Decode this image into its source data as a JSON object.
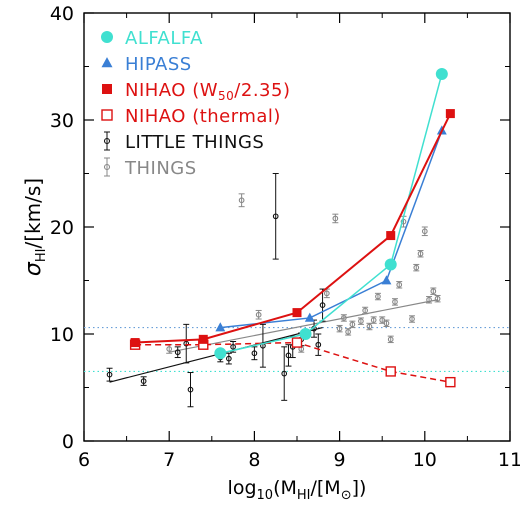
{
  "chart_data": {
    "type": "scatter",
    "xlabel": "log10(MHI/[M⊙])",
    "xlabel_parts": {
      "prefix": "log",
      "base": "10",
      "open": "(M",
      "sub": "HI",
      "mid": "/[M",
      "sun": "⊙",
      "close": "])"
    },
    "ylabel": "σHI/[km/s]",
    "ylabel_parts": {
      "sigma": "σ",
      "sub": "HI",
      "rest": "/[km/s]"
    },
    "xlim": [
      6,
      11
    ],
    "ylim": [
      0,
      40
    ],
    "x_ticks": [
      6,
      7,
      8,
      9,
      10,
      11
    ],
    "y_ticks": [
      0,
      10,
      20,
      30,
      40
    ],
    "grid": false,
    "legend_position": "top-left",
    "legend": [
      {
        "key": "alfalfa",
        "label": "ALFALFA",
        "color": "#40e0d0",
        "marker": "filled-circle"
      },
      {
        "key": "hipass",
        "label": "HIPASS",
        "color": "#3a7fd5",
        "marker": "filled-triangle"
      },
      {
        "key": "nihao_w50",
        "label": "NIHAO (W50/2.35)",
        "color": "#dd1111",
        "marker": "filled-square"
      },
      {
        "key": "nihao_thermal",
        "label": "NIHAO (thermal)",
        "color": "#dd1111",
        "marker": "open-square"
      },
      {
        "key": "little_things",
        "label": "LITTLE THINGS",
        "color": "#111111",
        "marker": "open-circle-errorbar"
      },
      {
        "key": "things",
        "label": "THINGS",
        "color": "#888888",
        "marker": "open-circle-errorbar"
      }
    ],
    "reference_lines": [
      {
        "y": 10.6,
        "color": "#6a9fd8",
        "style": "dotted"
      },
      {
        "y": 6.5,
        "color": "#40e0d0",
        "style": "dotted"
      }
    ],
    "series": [
      {
        "key": "alfalfa",
        "color": "#40e0d0",
        "marker": "circle",
        "filled": true,
        "connected": true,
        "points": [
          {
            "x": 7.6,
            "y": 8.2
          },
          {
            "x": 8.6,
            "y": 10.0
          },
          {
            "x": 9.6,
            "y": 16.5
          },
          {
            "x": 10.2,
            "y": 34.3
          }
        ]
      },
      {
        "key": "hipass",
        "color": "#3a7fd5",
        "marker": "triangle",
        "filled": true,
        "connected": true,
        "points": [
          {
            "x": 7.6,
            "y": 10.6
          },
          {
            "x": 8.65,
            "y": 11.5
          },
          {
            "x": 9.55,
            "y": 15.0
          },
          {
            "x": 10.2,
            "y": 29.0
          }
        ]
      },
      {
        "key": "nihao_w50",
        "color": "#dd1111",
        "marker": "square",
        "filled": true,
        "connected": true,
        "line_style": "solid",
        "points": [
          {
            "x": 6.6,
            "y": 9.2
          },
          {
            "x": 7.4,
            "y": 9.5
          },
          {
            "x": 8.5,
            "y": 12.0
          },
          {
            "x": 9.6,
            "y": 19.2
          },
          {
            "x": 10.3,
            "y": 30.6
          }
        ]
      },
      {
        "key": "nihao_thermal",
        "color": "#dd1111",
        "marker": "square",
        "filled": false,
        "connected": true,
        "line_style": "dashed",
        "points": [
          {
            "x": 6.6,
            "y": 9.0
          },
          {
            "x": 7.4,
            "y": 9.0
          },
          {
            "x": 8.5,
            "y": 9.2
          },
          {
            "x": 9.6,
            "y": 6.5
          },
          {
            "x": 10.3,
            "y": 5.5
          }
        ]
      },
      {
        "key": "little_things",
        "color": "#111111",
        "marker": "circle",
        "filled": false,
        "connected": false,
        "points": [
          {
            "x": 6.3,
            "y": 6.2,
            "err": 0.6
          },
          {
            "x": 6.7,
            "y": 5.6,
            "err": 0.4
          },
          {
            "x": 7.1,
            "y": 8.3,
            "err": 0.5
          },
          {
            "x": 7.2,
            "y": 9.1,
            "err": 1.8
          },
          {
            "x": 7.25,
            "y": 4.8,
            "err": 1.6
          },
          {
            "x": 7.6,
            "y": 7.8,
            "err": 0.4
          },
          {
            "x": 7.7,
            "y": 7.7,
            "err": 0.5
          },
          {
            "x": 7.75,
            "y": 8.8,
            "err": 0.5
          },
          {
            "x": 8.0,
            "y": 8.2,
            "err": 0.6
          },
          {
            "x": 8.1,
            "y": 8.9,
            "err": 2.0
          },
          {
            "x": 8.25,
            "y": 21.0,
            "err": 4.0
          },
          {
            "x": 8.35,
            "y": 6.3,
            "err": 2.5
          },
          {
            "x": 8.4,
            "y": 8.0,
            "err": 1.0
          },
          {
            "x": 8.45,
            "y": 8.8,
            "err": 1.0
          },
          {
            "x": 8.55,
            "y": 9.5,
            "err": 0.6
          },
          {
            "x": 8.7,
            "y": 10.5,
            "err": 0.8
          },
          {
            "x": 8.75,
            "y": 9.0,
            "err": 1.0
          },
          {
            "x": 8.8,
            "y": 12.7,
            "err": 1.5
          }
        ],
        "fit_line": [
          {
            "x": 6.3,
            "y": 5.5
          },
          {
            "x": 8.8,
            "y": 10.6
          }
        ]
      },
      {
        "key": "things",
        "color": "#888888",
        "marker": "circle",
        "filled": false,
        "connected": false,
        "points": [
          {
            "x": 7.0,
            "y": 8.6,
            "err": 0.4
          },
          {
            "x": 7.85,
            "y": 22.5,
            "err": 0.6
          },
          {
            "x": 8.05,
            "y": 11.8,
            "err": 0.4
          },
          {
            "x": 8.85,
            "y": 13.8,
            "err": 0.4
          },
          {
            "x": 8.95,
            "y": 20.8,
            "err": 0.4
          },
          {
            "x": 9.0,
            "y": 10.5,
            "err": 0.3
          },
          {
            "x": 9.05,
            "y": 11.5,
            "err": 0.3
          },
          {
            "x": 9.1,
            "y": 10.2,
            "err": 0.3
          },
          {
            "x": 9.15,
            "y": 10.9,
            "err": 0.3
          },
          {
            "x": 9.25,
            "y": 11.2,
            "err": 0.3
          },
          {
            "x": 9.3,
            "y": 12.2,
            "err": 0.3
          },
          {
            "x": 9.35,
            "y": 10.7,
            "err": 0.3
          },
          {
            "x": 9.4,
            "y": 11.3,
            "err": 0.3
          },
          {
            "x": 9.45,
            "y": 13.5,
            "err": 0.3
          },
          {
            "x": 9.5,
            "y": 11.3,
            "err": 0.3
          },
          {
            "x": 9.55,
            "y": 11.0,
            "err": 0.3
          },
          {
            "x": 9.6,
            "y": 9.5,
            "err": 0.3
          },
          {
            "x": 9.65,
            "y": 13.0,
            "err": 0.3
          },
          {
            "x": 9.7,
            "y": 14.6,
            "err": 0.3
          },
          {
            "x": 9.75,
            "y": 20.5,
            "err": 0.5
          },
          {
            "x": 9.85,
            "y": 11.4,
            "err": 0.3
          },
          {
            "x": 9.9,
            "y": 16.2,
            "err": 0.3
          },
          {
            "x": 9.95,
            "y": 17.5,
            "err": 0.3
          },
          {
            "x": 10.0,
            "y": 19.6,
            "err": 0.4
          },
          {
            "x": 10.05,
            "y": 13.2,
            "err": 0.3
          },
          {
            "x": 10.1,
            "y": 14.0,
            "err": 0.3
          },
          {
            "x": 10.15,
            "y": 13.3,
            "err": 0.3
          },
          {
            "x": 8.55,
            "y": 8.6,
            "err": 0.3
          }
        ],
        "fit_line": [
          {
            "x": 7.0,
            "y": 8.3
          },
          {
            "x": 10.15,
            "y": 13.2
          }
        ]
      }
    ]
  }
}
